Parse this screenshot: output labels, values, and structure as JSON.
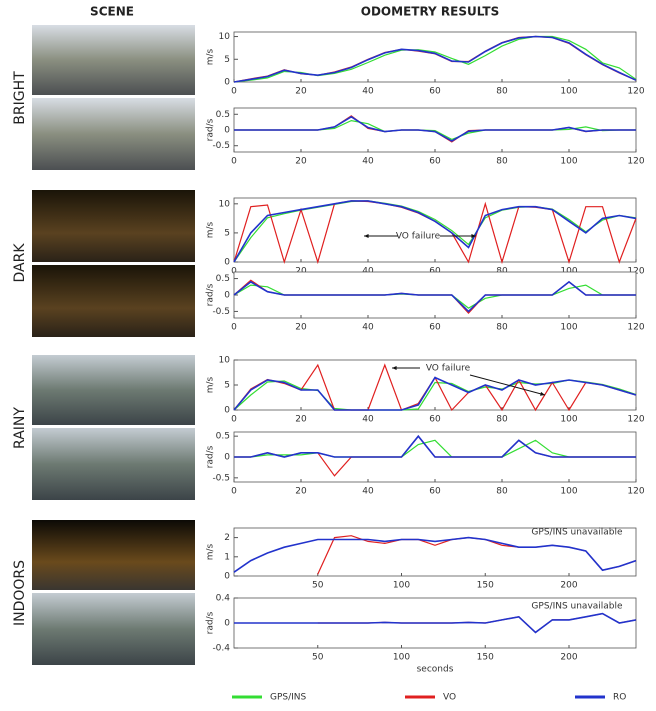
{
  "header": {
    "scene": "SCENE",
    "results": "ODOMETRY RESULTS"
  },
  "scenes": [
    "BRIGHT",
    "DARK",
    "RAINY",
    "INDOORS"
  ],
  "chart_data": [
    {
      "type": "line",
      "ylabel": "m/s",
      "xlim": [
        0,
        120
      ],
      "xticks": [
        0,
        20,
        40,
        60,
        80,
        100,
        120
      ],
      "ylim": [
        0,
        11
      ],
      "yticks": [
        0,
        5,
        10
      ],
      "x": [
        0,
        5,
        10,
        15,
        20,
        25,
        30,
        35,
        40,
        45,
        50,
        55,
        60,
        65,
        70,
        75,
        80,
        85,
        90,
        95,
        100,
        105,
        110,
        115,
        120
      ],
      "series": [
        {
          "name": "GPS/INS",
          "color": "#33dd33",
          "values": [
            0,
            0.4,
            0.9,
            2.3,
            2.1,
            1.4,
            1.9,
            2.8,
            4.3,
            5.9,
            7,
            7.1,
            6.6,
            5.2,
            3.9,
            5.8,
            7.9,
            9.4,
            10,
            10,
            9.1,
            7.2,
            4.2,
            3.1,
            0.6
          ]
        },
        {
          "name": "VO",
          "color": "#e02020",
          "values": [
            0,
            0.7,
            1.3,
            2.7,
            1.8,
            1.5,
            2.2,
            3.3,
            5,
            6.5,
            7.2,
            6.8,
            6.2,
            4.5,
            4.5,
            6.8,
            8.7,
            9.8,
            10,
            9.8,
            8.5,
            6,
            3.8,
            2,
            0.4
          ]
        },
        {
          "name": "RO",
          "color": "#2233cc",
          "values": [
            0,
            0.6,
            1.2,
            2.6,
            1.9,
            1.5,
            2.1,
            3.2,
            4.9,
            6.4,
            7.2,
            6.9,
            6.3,
            4.6,
            4.4,
            6.7,
            8.6,
            9.7,
            10,
            9.8,
            8.6,
            6.1,
            3.9,
            2.1,
            0.4
          ]
        }
      ]
    },
    {
      "type": "line",
      "ylabel": "rad/s",
      "xlim": [
        0,
        120
      ],
      "xticks": [
        0,
        20,
        40,
        60,
        80,
        100,
        120
      ],
      "ylim": [
        -0.7,
        0.7
      ],
      "yticks": [
        -0.5,
        0,
        0.5
      ],
      "x": [
        0,
        5,
        10,
        15,
        20,
        25,
        30,
        35,
        40,
        45,
        50,
        55,
        60,
        65,
        70,
        75,
        80,
        85,
        90,
        95,
        100,
        105,
        110,
        115,
        120
      ],
      "series": [
        {
          "name": "GPS/INS",
          "color": "#33dd33",
          "values": [
            0,
            0,
            0,
            0,
            0,
            0,
            0.05,
            0.3,
            0.2,
            -0.05,
            0,
            0,
            -0.02,
            -0.3,
            -0.1,
            0,
            0,
            0,
            0,
            0,
            0.02,
            0.1,
            -0.02,
            0,
            0
          ]
        },
        {
          "name": "VO",
          "color": "#e02020",
          "values": [
            0,
            0,
            0,
            0,
            0,
            0,
            0.1,
            0.45,
            0.05,
            -0.05,
            0,
            0,
            -0.05,
            -0.38,
            -0.02,
            0,
            0,
            0,
            0,
            0,
            0.08,
            -0.05,
            0,
            0,
            0
          ]
        },
        {
          "name": "RO",
          "color": "#2233cc",
          "values": [
            0,
            0,
            0,
            0,
            0,
            0,
            0.1,
            0.42,
            0.08,
            -0.05,
            0,
            0,
            -0.05,
            -0.35,
            -0.04,
            0,
            0,
            0,
            0,
            0,
            0.08,
            -0.04,
            0,
            0,
            0
          ]
        }
      ]
    },
    {
      "type": "line",
      "ylabel": "m/s",
      "xlim": [
        0,
        120
      ],
      "xticks": [
        0,
        20,
        40,
        60,
        80,
        100,
        120
      ],
      "ylim": [
        0,
        11
      ],
      "yticks": [
        0,
        5,
        10
      ],
      "annotations": [
        "VO failure"
      ],
      "x": [
        0,
        5,
        10,
        15,
        20,
        25,
        30,
        35,
        40,
        45,
        50,
        55,
        60,
        65,
        70,
        75,
        80,
        85,
        90,
        95,
        100,
        105,
        110,
        115,
        120
      ],
      "series": [
        {
          "name": "GPS/INS",
          "color": "#33dd33",
          "values": [
            0,
            4.2,
            7.6,
            8.3,
            8.9,
            9.4,
            9.9,
            10.4,
            10.5,
            10.1,
            9.6,
            8.7,
            7.3,
            5.4,
            3,
            7.6,
            8.9,
            9.4,
            9.5,
            9.1,
            7.3,
            5.2,
            7.2,
            8,
            7.6
          ]
        },
        {
          "name": "VO",
          "color": "#e02020",
          "values": [
            0,
            9.5,
            9.8,
            0,
            9,
            0,
            10,
            10.5,
            10.4,
            10,
            9.4,
            8.4,
            7,
            5,
            0,
            10,
            0,
            9.5,
            9.4,
            9,
            0,
            9.5,
            9.5,
            0,
            7.5
          ]
        },
        {
          "name": "RO",
          "color": "#2233cc",
          "values": [
            0,
            5,
            8,
            8.5,
            9,
            9.5,
            10,
            10.5,
            10.5,
            10,
            9.5,
            8.5,
            7,
            5,
            2.5,
            8,
            9,
            9.5,
            9.5,
            9,
            7,
            5,
            7.5,
            8,
            7.5
          ]
        }
      ]
    },
    {
      "type": "line",
      "ylabel": "rad/s",
      "xlim": [
        0,
        120
      ],
      "xticks": [
        0,
        20,
        40,
        60,
        80,
        100,
        120
      ],
      "ylim": [
        -0.7,
        0.7
      ],
      "yticks": [
        -0.5,
        0,
        0.5
      ],
      "x": [
        0,
        5,
        10,
        15,
        20,
        25,
        30,
        35,
        40,
        45,
        50,
        55,
        60,
        65,
        70,
        75,
        80,
        85,
        90,
        95,
        100,
        105,
        110,
        115,
        120
      ],
      "series": [
        {
          "name": "GPS/INS",
          "color": "#33dd33",
          "values": [
            0,
            0.3,
            0.25,
            0,
            0,
            0,
            0,
            0,
            0,
            0,
            0.03,
            0,
            0,
            0,
            -0.4,
            -0.1,
            0,
            0,
            0,
            0,
            0.2,
            0.3,
            0,
            0,
            0
          ]
        },
        {
          "name": "VO",
          "color": "#e02020",
          "values": [
            0,
            0.45,
            0.1,
            0,
            0,
            0,
            0,
            0,
            0,
            0,
            0.05,
            0,
            0,
            0,
            -0.55,
            0,
            0,
            0,
            0,
            0,
            0.4,
            0,
            0,
            0,
            0
          ]
        },
        {
          "name": "RO",
          "color": "#2233cc",
          "values": [
            0,
            0.4,
            0.1,
            0,
            0,
            0,
            0,
            0,
            0,
            0,
            0.05,
            0,
            0,
            0,
            -0.5,
            0,
            0,
            0,
            0,
            0,
            0.4,
            0,
            0,
            0,
            0
          ]
        }
      ]
    },
    {
      "type": "line",
      "ylabel": "m/s",
      "xlim": [
        0,
        120
      ],
      "xticks": [
        0,
        20,
        40,
        60,
        80,
        100,
        120
      ],
      "ylim": [
        0,
        10
      ],
      "yticks": [
        0,
        5,
        10
      ],
      "annotations": [
        "VO failure"
      ],
      "x": [
        0,
        5,
        10,
        15,
        20,
        25,
        30,
        35,
        40,
        45,
        50,
        55,
        60,
        65,
        70,
        75,
        80,
        85,
        90,
        95,
        100,
        105,
        110,
        115,
        120
      ],
      "series": [
        {
          "name": "GPS/INS",
          "color": "#33dd33",
          "values": [
            0,
            3,
            5.6,
            5.8,
            4.3,
            3.9,
            0.3,
            0,
            0,
            0,
            0,
            0.2,
            5.5,
            5.3,
            3.7,
            4.6,
            4.2,
            5.5,
            5.2,
            5.3,
            6,
            5.6,
            5.1,
            4.2,
            3.1
          ]
        },
        {
          "name": "VO",
          "color": "#e02020",
          "values": [
            0,
            4.2,
            6.1,
            5.3,
            4,
            9,
            0,
            0,
            0,
            9,
            0,
            1.3,
            6.5,
            0,
            3.5,
            5,
            0,
            6,
            0,
            5.5,
            0,
            5.5,
            5,
            4,
            3
          ]
        },
        {
          "name": "RO",
          "color": "#2233cc",
          "values": [
            0,
            4,
            6,
            5.5,
            4,
            4,
            0,
            0,
            0,
            0,
            0,
            1,
            6.5,
            5,
            3.5,
            5,
            4,
            6,
            5,
            5.5,
            6,
            5.5,
            5,
            4,
            3
          ]
        }
      ]
    },
    {
      "type": "line",
      "ylabel": "rad/s",
      "xlim": [
        0,
        120
      ],
      "xticks": [
        0,
        20,
        40,
        60,
        80,
        100,
        120
      ],
      "ylim": [
        -0.6,
        0.6
      ],
      "yticks": [
        -0.5,
        0,
        0.5
      ],
      "x": [
        0,
        5,
        10,
        15,
        20,
        25,
        30,
        35,
        40,
        45,
        50,
        55,
        60,
        65,
        70,
        75,
        80,
        85,
        90,
        95,
        100,
        105,
        110,
        115,
        120
      ],
      "series": [
        {
          "name": "GPS/INS",
          "color": "#33dd33",
          "values": [
            0,
            0,
            0.05,
            0.05,
            0.05,
            0.1,
            0,
            0,
            0,
            0,
            0,
            0.3,
            0.4,
            0,
            0,
            0,
            0,
            0.2,
            0.4,
            0.1,
            0,
            0,
            0,
            0,
            0
          ]
        },
        {
          "name": "VO",
          "color": "#e02020",
          "values": [
            0,
            0,
            0.1,
            0,
            0.1,
            0.1,
            -0.45,
            0,
            0,
            0,
            0,
            0.5,
            0,
            0,
            0,
            0,
            0,
            0.4,
            0.1,
            0,
            0,
            0,
            0,
            0,
            0
          ]
        },
        {
          "name": "RO",
          "color": "#2233cc",
          "values": [
            0,
            0,
            0.1,
            0,
            0.1,
            0.1,
            0,
            0,
            0,
            0,
            0,
            0.5,
            0,
            0,
            0,
            0,
            0,
            0.4,
            0.1,
            0,
            0,
            0,
            0,
            0,
            0
          ]
        }
      ]
    },
    {
      "type": "line",
      "ylabel": "m/s",
      "xlim": [
        0,
        240
      ],
      "xticks": [
        50,
        100,
        150,
        200
      ],
      "ylim": [
        0,
        2.5
      ],
      "yticks": [
        0,
        1,
        2
      ],
      "annotations": [
        "GPS/INS unavailable"
      ],
      "x": [
        0,
        10,
        20,
        30,
        40,
        50,
        60,
        70,
        80,
        90,
        100,
        110,
        120,
        130,
        140,
        150,
        160,
        170,
        180,
        190,
        200,
        210,
        220,
        230,
        240
      ],
      "series": [
        {
          "name": "VO",
          "color": "#e02020",
          "values": [
            null,
            null,
            null,
            null,
            null,
            0.1,
            2,
            2.1,
            1.8,
            1.7,
            1.9,
            1.9,
            1.6,
            1.9,
            2,
            1.9,
            1.6,
            1.5,
            1.5,
            1.6,
            1.5,
            1.3,
            0.3,
            0.5,
            0.8
          ]
        },
        {
          "name": "RO",
          "color": "#2233cc",
          "values": [
            0.2,
            0.8,
            1.2,
            1.5,
            1.7,
            1.9,
            1.9,
            1.9,
            1.9,
            1.8,
            1.9,
            1.9,
            1.8,
            1.9,
            2,
            1.9,
            1.7,
            1.5,
            1.5,
            1.6,
            1.5,
            1.3,
            0.3,
            0.5,
            0.8
          ]
        }
      ]
    },
    {
      "type": "line",
      "ylabel": "rad/s",
      "xlabel": "seconds",
      "xlim": [
        0,
        240
      ],
      "xticks": [
        50,
        100,
        150,
        200
      ],
      "ylim": [
        -0.4,
        0.4
      ],
      "yticks": [
        -0.4,
        0,
        0.4
      ],
      "annotations": [
        "GPS/INS unavailable"
      ],
      "x": [
        0,
        10,
        20,
        30,
        40,
        50,
        60,
        70,
        80,
        90,
        100,
        110,
        120,
        130,
        140,
        150,
        160,
        170,
        180,
        190,
        200,
        210,
        220,
        230,
        240
      ],
      "series": [
        {
          "name": "VO",
          "color": "#e02020",
          "values": [
            null,
            null,
            null,
            null,
            null,
            0,
            0,
            0,
            0,
            0.01,
            0,
            0,
            0,
            0,
            0.01,
            0,
            0.05,
            0.1,
            -0.15,
            0.05,
            0.05,
            0.1,
            0.15,
            0,
            0.05
          ]
        },
        {
          "name": "RO",
          "color": "#2233cc",
          "values": [
            0,
            0,
            0,
            0,
            0,
            0,
            0,
            0,
            0,
            0.01,
            0,
            0,
            0,
            0,
            0.01,
            0,
            0.05,
            0.1,
            -0.15,
            0.05,
            0.05,
            0.1,
            0.15,
            0,
            0.05
          ]
        }
      ]
    }
  ]
}
